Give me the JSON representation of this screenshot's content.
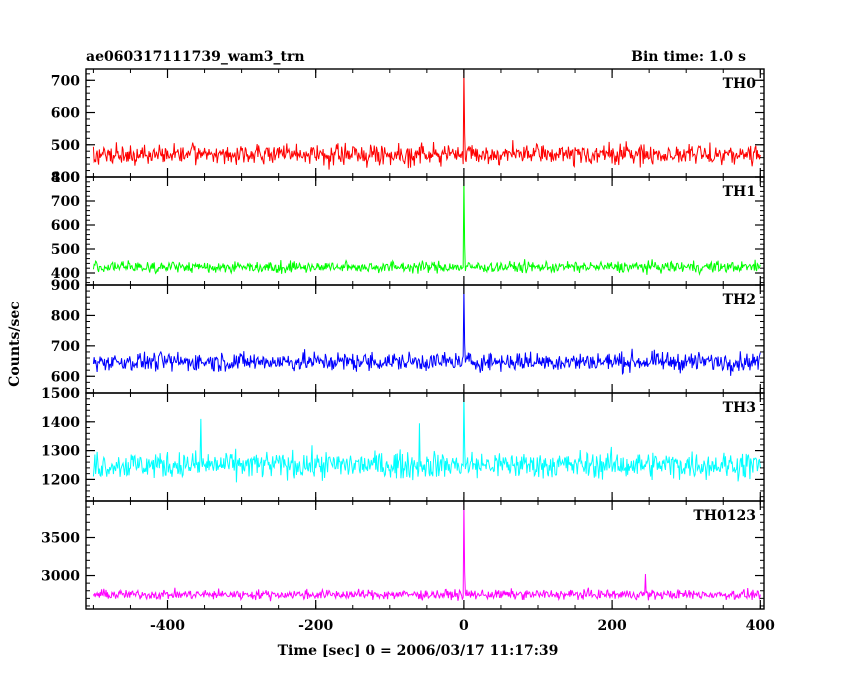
{
  "chart_data": {
    "type": "line",
    "title_left": "ae060317111739_wam3_trn",
    "title_right": "Bin time: 1.0 s",
    "xlabel": "Time [sec] 0 = 2006/03/17 11:17:39",
    "ylabel": "Counts/sec",
    "xlim": [
      -510,
      405
    ],
    "x_ticks": [
      -400,
      -200,
      0,
      200,
      400
    ],
    "x_range": [
      -500,
      400
    ],
    "bin_time": 1.0,
    "grid": false,
    "panels": [
      {
        "name": "TH0",
        "color": "#ff0000",
        "ylim": [
          400,
          735
        ],
        "yticks": [
          400,
          500,
          600,
          700
        ],
        "baseline": 470,
        "noise": 22,
        "spike_peak": 735,
        "extras": []
      },
      {
        "name": "TH1",
        "color": "#00ff00",
        "ylim": [
          350,
          800
        ],
        "yticks": [
          400,
          500,
          600,
          700,
          800
        ],
        "baseline": 425,
        "noise": 17,
        "spike_peak": 800,
        "extras": []
      },
      {
        "name": "TH2",
        "color": "#0000ff",
        "ylim": [
          545,
          900
        ],
        "yticks": [
          600,
          700,
          800,
          900
        ],
        "baseline": 648,
        "noise": 22,
        "spike_peak": 890,
        "extras": []
      },
      {
        "name": "TH3",
        "color": "#00ffff",
        "ylim": [
          1125,
          1500
        ],
        "yticks": [
          1200,
          1300,
          1400,
          1500
        ],
        "baseline": 1250,
        "noise": 33,
        "spike_peak": 1500,
        "extras": [
          {
            "x": -355,
            "y": 1410
          },
          {
            "x": -60,
            "y": 1395
          }
        ]
      },
      {
        "name": "TH0123",
        "color": "#ff00ff",
        "ylim": [
          2560,
          3980
        ],
        "yticks": [
          3000,
          3500
        ],
        "baseline": 2750,
        "noise": 45,
        "spike_peak": 3950,
        "extras": [
          {
            "x": 245,
            "y": 3020
          }
        ]
      }
    ]
  }
}
